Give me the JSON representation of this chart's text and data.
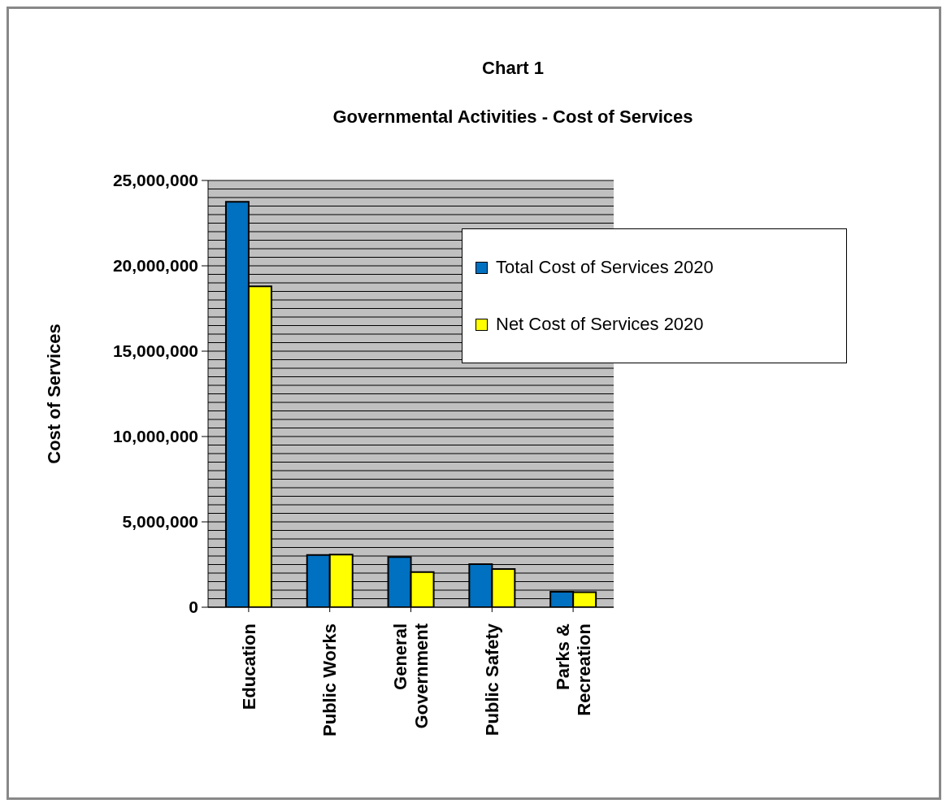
{
  "chart_data": {
    "type": "bar",
    "title": "Chart 1",
    "subtitle": "Governmental Activities - Cost of Services",
    "ylabel": "Cost of Services",
    "categories": [
      "Education",
      "Public Works",
      "General Government",
      "Public Safety",
      "Parks & Recreation"
    ],
    "series": [
      {
        "name": "Total Cost of Services 2020",
        "color": "#0070c0",
        "values": [
          23750000,
          3060000,
          2940000,
          2520000,
          900000
        ]
      },
      {
        "name": "Net Cost of Services 2020",
        "color": "#ffff00",
        "values": [
          18800000,
          3080000,
          2060000,
          2240000,
          880000
        ]
      }
    ],
    "ylim": [
      0,
      25000000
    ],
    "yticks": [
      {
        "value": 0,
        "label": "0"
      },
      {
        "value": 500000,
        "label": null
      },
      {
        "value": 1000000,
        "label": null
      },
      {
        "value": 1500000,
        "label": null
      },
      {
        "value": 2000000,
        "label": null
      },
      {
        "value": 2500000,
        "label": null
      },
      {
        "value": 3000000,
        "label": null
      },
      {
        "value": 3500000,
        "label": null
      },
      {
        "value": 4000000,
        "label": null
      },
      {
        "value": 4500000,
        "label": null
      },
      {
        "value": 5000000,
        "label": "5,000,000"
      },
      {
        "value": 5500000,
        "label": null
      },
      {
        "value": 6000000,
        "label": null
      },
      {
        "value": 6500000,
        "label": null
      },
      {
        "value": 7000000,
        "label": null
      },
      {
        "value": 7500000,
        "label": null
      },
      {
        "value": 8000000,
        "label": null
      },
      {
        "value": 8500000,
        "label": null
      },
      {
        "value": 9000000,
        "label": null
      },
      {
        "value": 9500000,
        "label": null
      },
      {
        "value": 10000000,
        "label": "10,000,000"
      },
      {
        "value": 10500000,
        "label": null
      },
      {
        "value": 11000000,
        "label": null
      },
      {
        "value": 11500000,
        "label": null
      },
      {
        "value": 12000000,
        "label": null
      },
      {
        "value": 12500000,
        "label": null
      },
      {
        "value": 13000000,
        "label": null
      },
      {
        "value": 13500000,
        "label": null
      },
      {
        "value": 14000000,
        "label": null
      },
      {
        "value": 14500000,
        "label": null
      },
      {
        "value": 15000000,
        "label": "15,000,000"
      },
      {
        "value": 15500000,
        "label": null
      },
      {
        "value": 16000000,
        "label": null
      },
      {
        "value": 16500000,
        "label": null
      },
      {
        "value": 17000000,
        "label": null
      },
      {
        "value": 17500000,
        "label": null
      },
      {
        "value": 18000000,
        "label": null
      },
      {
        "value": 18500000,
        "label": null
      },
      {
        "value": 19000000,
        "label": null
      },
      {
        "value": 19500000,
        "label": null
      },
      {
        "value": 20000000,
        "label": "20,000,000"
      },
      {
        "value": 20500000,
        "label": null
      },
      {
        "value": 21000000,
        "label": null
      },
      {
        "value": 21500000,
        "label": null
      },
      {
        "value": 22000000,
        "label": null
      },
      {
        "value": 22500000,
        "label": null
      },
      {
        "value": 23000000,
        "label": null
      },
      {
        "value": 23500000,
        "label": null
      },
      {
        "value": 24000000,
        "label": null
      },
      {
        "value": 24500000,
        "label": null
      },
      {
        "value": 25000000,
        "label": "25,000,000"
      }
    ],
    "grid": "y",
    "legend": "top right"
  }
}
